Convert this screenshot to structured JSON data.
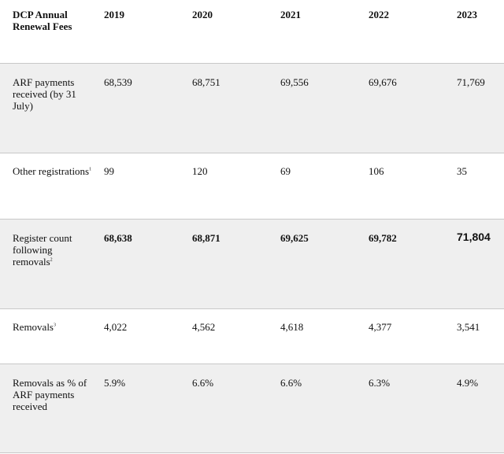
{
  "table": {
    "header": {
      "label": "DCP Annual Renewal Fees",
      "years": [
        "2019",
        "2020",
        "2021",
        "2022",
        "2023"
      ]
    },
    "rows": [
      {
        "label": "ARF payments received (by 31 July)",
        "note": "",
        "values": [
          "68,539",
          "68,751",
          "69,556",
          "69,676",
          "71,769"
        ]
      },
      {
        "label": "Other registrations",
        "note": "1",
        "values": [
          "99",
          "120",
          "69",
          "106",
          "35"
        ]
      },
      {
        "label": "Register count following removals",
        "note": "2",
        "values": [
          "68,638",
          "68,871",
          "69,625",
          "69,782",
          "71,804"
        ]
      },
      {
        "label": "Removals",
        "note": "3",
        "values": [
          "4,022",
          "4,562",
          "4,618",
          "4,377",
          "3,541"
        ]
      },
      {
        "label": "Removals as % of ARF payments received",
        "note": "",
        "values": [
          "5.9%",
          "6.6%",
          "6.6%",
          "6.3%",
          "4.9%"
        ]
      }
    ]
  }
}
